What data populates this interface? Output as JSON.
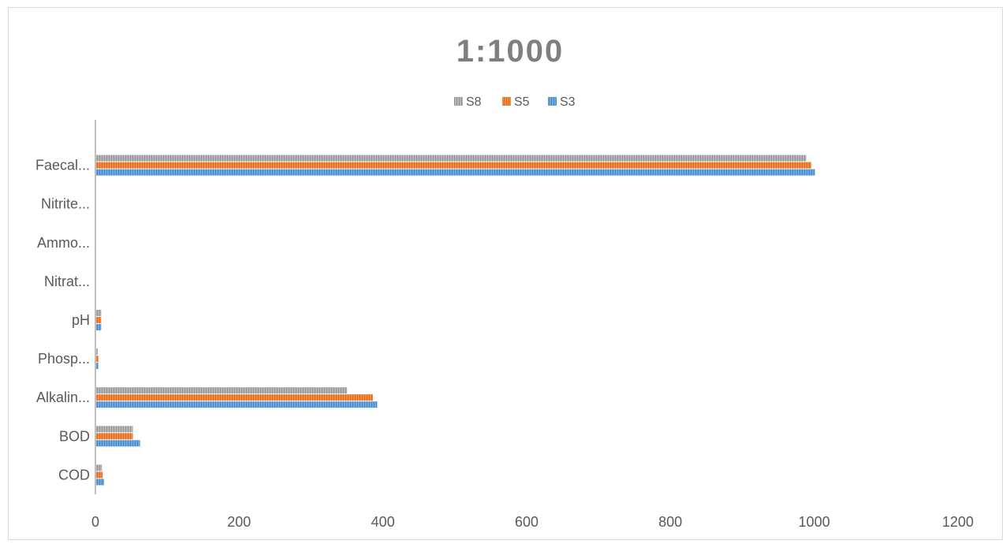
{
  "chart_data": {
    "type": "bar",
    "orientation": "horizontal",
    "title": "1:1000",
    "xlabel": "",
    "ylabel": "",
    "xlim": [
      0,
      1200
    ],
    "x_ticks": [
      0,
      200,
      400,
      600,
      800,
      1000,
      1200
    ],
    "x_tick_labels": [
      "0",
      "200",
      "400",
      "600",
      "800",
      "1000",
      "1200"
    ],
    "grid": false,
    "legend_position": "top",
    "categories": [
      "COD",
      "BOD",
      "Alkalin...",
      "Phosp...",
      "pH",
      "Nitrat...",
      "Ammo...",
      "Nitrite...",
      "Faecal..."
    ],
    "series": [
      {
        "name": "S8",
        "color": "#a5a5a5",
        "values": [
          8,
          51,
          349,
          2,
          7,
          0,
          0,
          0,
          988
        ]
      },
      {
        "name": "S5",
        "color": "#ed7d31",
        "values": [
          9,
          51,
          385,
          3,
          7,
          0,
          0,
          0,
          995
        ]
      },
      {
        "name": "S3",
        "color": "#5b9bd5",
        "values": [
          11,
          61,
          391,
          3,
          7,
          0,
          0,
          0,
          1000
        ]
      }
    ]
  }
}
